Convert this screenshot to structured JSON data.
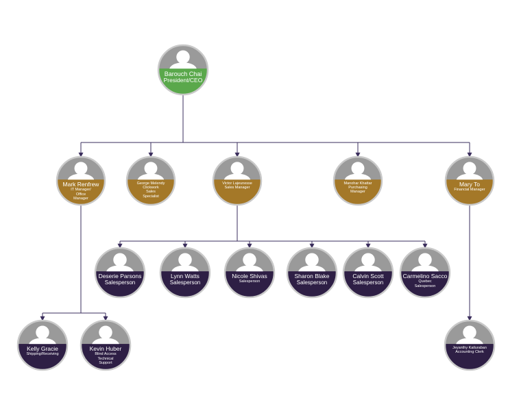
{
  "colors": {
    "ceo": "#5aa84b",
    "manager": "#a47828",
    "staff": "#2e1f45",
    "ring": "#c9c9c9",
    "avatar_bg": "#9a9a9a",
    "avatar_fg": "#ffffff",
    "line": "#3a2d5c",
    "text": "#ffffff"
  },
  "nodes": [
    {
      "id": "ceo",
      "tier": "ceo",
      "name": "Barouch Chai",
      "title": [
        "President/CEO"
      ],
      "icon": "person-silhouette-icon"
    },
    {
      "id": "mark",
      "tier": "manager",
      "name": "Mark Renfrew",
      "title": [
        "IT Manager/",
        "Office",
        "Manager"
      ],
      "icon": "person-silhouette-icon"
    },
    {
      "id": "george",
      "tier": "manager",
      "name": "George Melendy",
      "title": [
        "Clickwork",
        "Sales",
        "Specialist"
      ],
      "icon": "person-silhouette-icon"
    },
    {
      "id": "victor",
      "tier": "manager",
      "name": "Victor Lajeunesse",
      "title": [
        "Sales Manager"
      ],
      "icon": "person-silhouette-icon"
    },
    {
      "id": "manohar",
      "tier": "manager",
      "name": "Manohar Khattar",
      "title": [
        "Purchasing",
        "Manager"
      ],
      "icon": "person-silhouette-icon"
    },
    {
      "id": "mary",
      "tier": "manager",
      "name": "Mary To",
      "title": [
        "Financial Manager"
      ],
      "icon": "person-silhouette-icon"
    },
    {
      "id": "deserie",
      "tier": "staff",
      "name": "Deserie Parsons",
      "title": [
        "Salesperson"
      ],
      "icon": "person-silhouette-icon"
    },
    {
      "id": "lynn",
      "tier": "staff",
      "name": "Lynn Watts",
      "title": [
        "Salesperson"
      ],
      "icon": "person-silhouette-icon"
    },
    {
      "id": "nicole",
      "tier": "staff",
      "name": "Nicole Shivas",
      "title": [
        "Salesperson"
      ],
      "icon": "person-silhouette-icon"
    },
    {
      "id": "sharon",
      "tier": "staff",
      "name": "Sharon Blake",
      "title": [
        "Salesperson"
      ],
      "icon": "person-silhouette-icon"
    },
    {
      "id": "calvin",
      "tier": "staff",
      "name": "Calvin Scott",
      "title": [
        "Salesperson"
      ],
      "icon": "person-silhouette-icon"
    },
    {
      "id": "carmelino",
      "tier": "staff",
      "name": "Carmelino Sacco",
      "title": [
        "Quebec",
        "Salesperson"
      ],
      "icon": "person-silhouette-icon"
    },
    {
      "id": "kelly",
      "tier": "staff",
      "name": "Kelly Gracie",
      "title": [
        "Shipping/Receiving"
      ],
      "icon": "person-silhouette-icon"
    },
    {
      "id": "kevin",
      "tier": "staff",
      "name": "Kevin Huber",
      "title": [
        "Blind Access",
        "Technical",
        "Support"
      ],
      "icon": "person-silhouette-icon"
    },
    {
      "id": "jeyanthy",
      "tier": "staff",
      "name": "Jeyanthy Kailuraban",
      "title": [
        "Accounting Clerk"
      ],
      "icon": "person-silhouette-icon"
    }
  ],
  "links": [
    {
      "from": "ceo",
      "to": [
        "mark",
        "george",
        "victor",
        "manohar",
        "mary"
      ]
    },
    {
      "from": "victor",
      "to": [
        "deserie",
        "lynn",
        "nicole",
        "sharon",
        "calvin",
        "carmelino"
      ]
    },
    {
      "from": "mark",
      "to": [
        "kelly",
        "kevin"
      ]
    },
    {
      "from": "mary",
      "to": [
        "jeyanthy"
      ]
    }
  ]
}
